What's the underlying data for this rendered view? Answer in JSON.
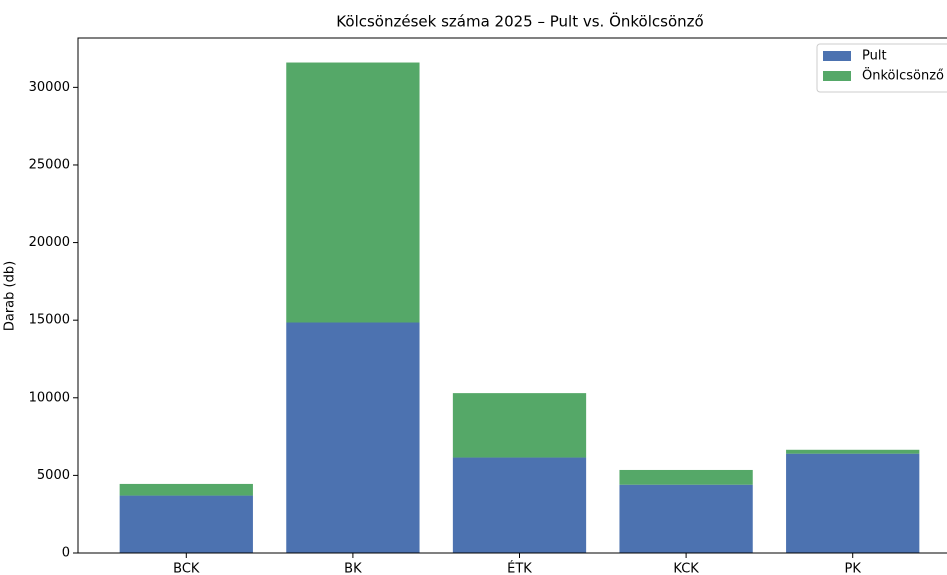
{
  "chart_data": {
    "type": "stacked_bar",
    "title": "Kölcsönzések száma 2025 – Pult vs. Önkölcsönző",
    "y_label": "Darab (db)",
    "categories": [
      "BCK",
      "BK",
      "ÉTK",
      "KCK",
      "PK"
    ],
    "series": [
      {
        "name": "Pult",
        "color": "#4c72b0",
        "values": [
          3700,
          14850,
          6150,
          4400,
          6400
        ]
      },
      {
        "name": "Önkölcsönző",
        "color": "#55a868",
        "values": [
          750,
          16750,
          4150,
          950,
          250
        ]
      }
    ],
    "ylim": [
      0,
      33180
    ],
    "yticks": [
      0,
      5000,
      10000,
      15000,
      20000,
      25000,
      30000
    ],
    "legend": "upper right"
  }
}
